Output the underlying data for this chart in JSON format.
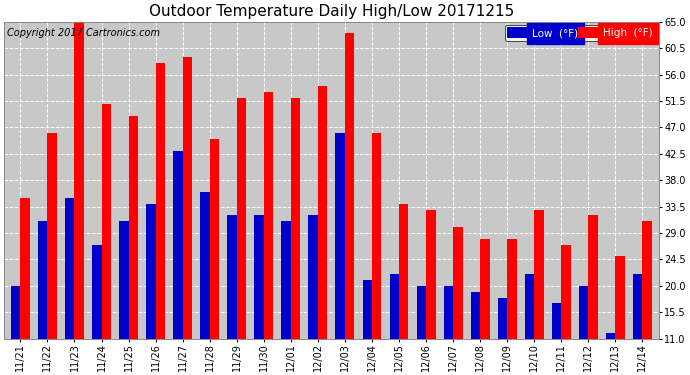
{
  "dates": [
    "11/21",
    "11/22",
    "11/23",
    "11/24",
    "11/25",
    "11/26",
    "11/27",
    "11/28",
    "11/29",
    "11/30",
    "12/01",
    "12/02",
    "12/03",
    "12/04",
    "12/05",
    "12/06",
    "12/07",
    "12/08",
    "12/09",
    "12/10",
    "12/11",
    "12/12",
    "12/13",
    "12/14"
  ],
  "lows": [
    20,
    31,
    35,
    27,
    31,
    34,
    43,
    36,
    32,
    32,
    31,
    32,
    46,
    21,
    22,
    20,
    20,
    19,
    18,
    22,
    17,
    20,
    12,
    22
  ],
  "highs": [
    35,
    46,
    65,
    51,
    49,
    58,
    59,
    45,
    52,
    53,
    52,
    54,
    63,
    46,
    34,
    33,
    30,
    28,
    28,
    33,
    27,
    32,
    25,
    31
  ],
  "title": "Outdoor Temperature Daily High/Low 20171215",
  "copyright": "Copyright 2017 Cartronics.com",
  "ylim_min": 11.0,
  "ylim_max": 65.0,
  "yticks": [
    11.0,
    15.5,
    20.0,
    24.5,
    29.0,
    33.5,
    38.0,
    42.5,
    47.0,
    51.5,
    56.0,
    60.5,
    65.0
  ],
  "low_color": "#0000cc",
  "high_color": "#ff0000",
  "bg_color": "#ffffff",
  "plot_bg_color": "#c8c8c8",
  "grid_color": "#ffffff",
  "legend_low_label": "Low  (°F)",
  "legend_high_label": "High  (°F)",
  "title_fontsize": 11,
  "copyright_fontsize": 7,
  "tick_fontsize": 7,
  "bar_width": 0.35
}
